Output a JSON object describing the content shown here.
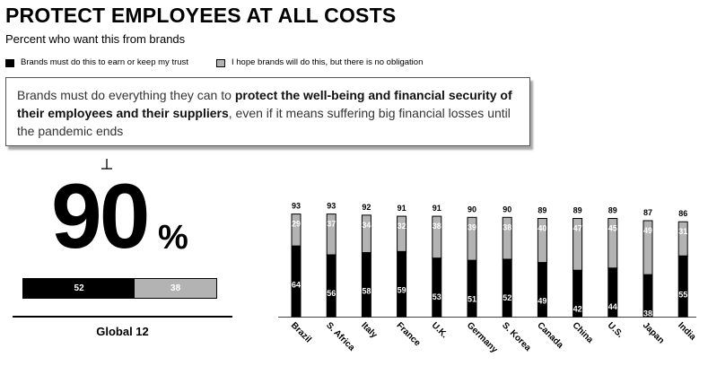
{
  "header": {
    "title": "PROTECT EMPLOYEES AT ALL COSTS",
    "subtitle": "Percent who want this from brands"
  },
  "legend": {
    "must": {
      "label": "Brands must do this to earn or keep my trust",
      "color": "#000000"
    },
    "hope": {
      "label": "I hope brands will do this, but there is no obligation",
      "color": "#b3b3b3"
    }
  },
  "statement": {
    "part1": "Brands must do everything they can to ",
    "bold": "protect the well-being and financial security of their employees and their suppliers",
    "part2": ", even if it means suffering big financial losses until the pandemic ends"
  },
  "global": {
    "value": "90",
    "percent_sign": "%",
    "must": 52,
    "hope": 38,
    "label": "Global 12"
  },
  "chart_data": {
    "type": "bar",
    "stacked": true,
    "categories": [
      "Brazil",
      "S. Africa",
      "Italy",
      "France",
      "U.K.",
      "Germany",
      "S. Korea",
      "Canada",
      "China",
      "U.S.",
      "Japan",
      "India"
    ],
    "series": [
      {
        "name": "Brands must do this to earn or keep my trust",
        "color": "#000000",
        "values": [
          64,
          56,
          58,
          59,
          53,
          51,
          52,
          49,
          42,
          44,
          38,
          55
        ]
      },
      {
        "name": "I hope brands will do this, but there is no obligation",
        "color": "#b3b3b3",
        "values": [
          29,
          37,
          34,
          32,
          38,
          39,
          38,
          40,
          47,
          45,
          49,
          31
        ]
      }
    ],
    "totals": [
      93,
      93,
      92,
      91,
      91,
      90,
      90,
      89,
      89,
      89,
      87,
      86
    ],
    "ylim": [
      0,
      100
    ]
  }
}
